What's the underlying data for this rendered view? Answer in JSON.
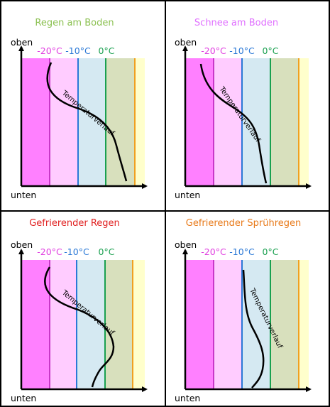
{
  "axis": {
    "top_label": "oben",
    "bottom_label": "unten"
  },
  "curve_label": "Temperaturverlauf",
  "ticks": [
    {
      "label": "-20°C",
      "color": "#e040e0"
    },
    {
      "label": "-10°C",
      "color": "#2a78d6"
    },
    {
      "label": "0°C",
      "color": "#1aa050"
    }
  ],
  "zone_colors": {
    "very_cold": "#ff80ff",
    "cold": "#ffccff",
    "cool": "#d5e9f2",
    "above_zero": "#d8e0bd",
    "warm": "#ffffcc",
    "line_minus20": "#c838c8",
    "line_minus10": "#2a78d6",
    "line_0": "#1aa050",
    "line_plus10": "#f0a020"
  },
  "panels": [
    {
      "title": "Regen am Boden",
      "title_color": "#8cc152"
    },
    {
      "title": "Schnee am Boden",
      "title_color": "#e070ff"
    },
    {
      "title": "Gefrierender Regen",
      "title_color": "#e02020"
    },
    {
      "title": "Gefrierender Sprühregen",
      "title_color": "#e87a1a"
    }
  ]
}
